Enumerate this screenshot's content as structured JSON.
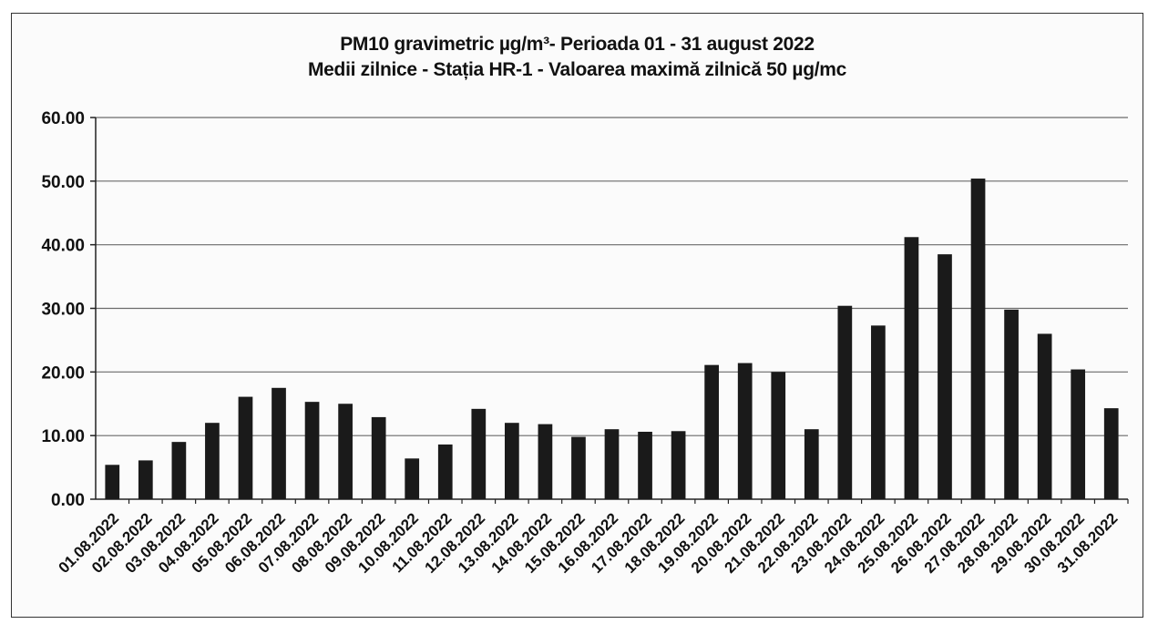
{
  "chart_data": {
    "type": "bar",
    "title": "PM10 gravimetric µg/m³- Perioada 01 - 31 august 2022",
    "subtitle": "Medii zilnice - Stația HR-1 -  Valoarea maximă zilnică 50 µg/mc",
    "xlabel": "",
    "ylabel": "",
    "ylim": [
      0,
      60
    ],
    "yticks": [
      "0.00",
      "10.00",
      "20.00",
      "30.00",
      "40.00",
      "50.00",
      "60.00"
    ],
    "ytick_values": [
      0,
      10,
      20,
      30,
      40,
      50,
      60
    ],
    "grid": true,
    "legend": "none",
    "bar_color": "#1a1a1a",
    "categories": [
      "01.08.2022",
      "02.08.2022",
      "03.08.2022",
      "04.08.2022",
      "05.08.2022",
      "06.08.2022",
      "07.08.2022",
      "08.08.2022",
      "09.08.2022",
      "10.08.2022",
      "11.08.2022",
      "12.08.2022",
      "13.08.2022",
      "14.08.2022",
      "15.08.2022",
      "16.08.2022",
      "17.08.2022",
      "18.08.2022",
      "19.08.2022",
      "20.08.2022",
      "21.08.2022",
      "22.08.2022",
      "23.08.2022",
      "24.08.2022",
      "25.08.2022",
      "26.08.2022",
      "27.08.2022",
      "28.08.2022",
      "29.08.2022",
      "30.08.2022",
      "31.08.2022"
    ],
    "values": [
      5.4,
      6.1,
      9.0,
      12.0,
      16.1,
      17.5,
      15.3,
      15.0,
      12.9,
      6.4,
      8.6,
      14.2,
      12.0,
      11.8,
      9.8,
      11.0,
      10.6,
      10.7,
      21.1,
      21.4,
      20.0,
      11.0,
      30.4,
      27.3,
      41.2,
      38.5,
      50.4,
      29.8,
      26.0,
      20.4,
      14.3
    ]
  }
}
